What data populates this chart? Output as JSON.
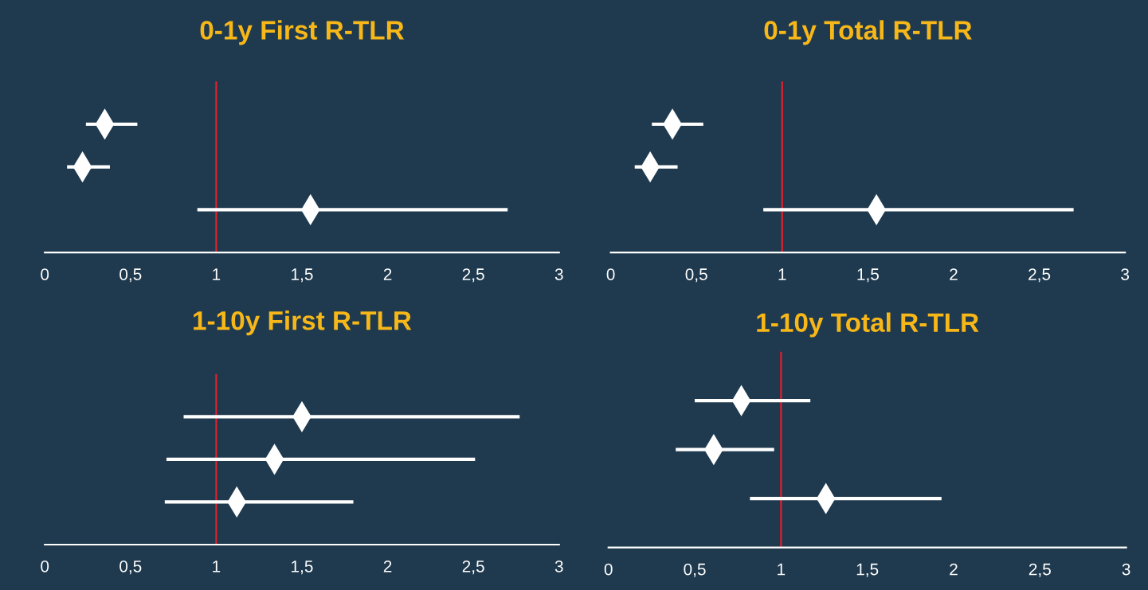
{
  "chart_data": [
    {
      "type": "scatter",
      "title": "0-1y First R-TLR",
      "categories": [
        null,
        null,
        null
      ],
      "orientation": "horizontal",
      "marker": "diamond",
      "tick_labels": "x",
      "grid": false,
      "legend": false,
      "color": "#ffffff",
      "values": [
        0.35,
        0.22,
        1.55
      ],
      "errors": [
        [
          0.24,
          0.54
        ],
        [
          0.13,
          0.38
        ],
        [
          0.89,
          2.7
        ]
      ],
      "xlim": [
        0,
        3
      ],
      "xticks": [
        0,
        {
          "value": 0.5,
          "label": "0,5"
        },
        1,
        {
          "value": 1.5,
          "label": "1,5"
        },
        2,
        {
          "value": 2.5,
          "label": "2,5"
        },
        3
      ],
      "ref_lines": [
        {
          "axis": "x",
          "value": 1,
          "color": "#e8202a"
        }
      ]
    },
    {
      "type": "scatter",
      "title": "0-1y Total R-TLR",
      "categories": [
        null,
        null,
        null
      ],
      "orientation": "horizontal",
      "marker": "diamond",
      "tick_labels": "x",
      "grid": false,
      "legend": false,
      "color": "#ffffff",
      "values": [
        0.36,
        0.23,
        1.55
      ],
      "errors": [
        [
          0.24,
          0.54
        ],
        [
          0.14,
          0.39
        ],
        [
          0.89,
          2.7
        ]
      ],
      "xlim": [
        0,
        3
      ],
      "xticks": [
        0,
        {
          "value": 0.5,
          "label": "0,5"
        },
        1,
        {
          "value": 1.5,
          "label": "1,5"
        },
        2,
        {
          "value": 2.5,
          "label": "2,5"
        },
        3
      ],
      "ref_lines": [
        {
          "axis": "x",
          "value": 1,
          "color": "#e8202a"
        }
      ]
    },
    {
      "type": "scatter",
      "title": "1-10y First R-TLR",
      "categories": [
        null,
        null,
        null
      ],
      "orientation": "horizontal",
      "marker": "diamond",
      "tick_labels": "x",
      "grid": false,
      "legend": false,
      "color": "#ffffff",
      "values": [
        1.5,
        1.34,
        1.12
      ],
      "errors": [
        [
          0.81,
          2.77
        ],
        [
          0.71,
          2.51
        ],
        [
          0.7,
          1.8
        ]
      ],
      "xlim": [
        0,
        3
      ],
      "xticks": [
        0,
        {
          "value": 0.5,
          "label": "0,5"
        },
        1,
        {
          "value": 1.5,
          "label": "1,5"
        },
        2,
        {
          "value": 2.5,
          "label": "2,5"
        },
        3
      ],
      "ref_lines": [
        {
          "axis": "x",
          "value": 1,
          "color": "#e8202a"
        }
      ]
    },
    {
      "type": "scatter",
      "title": "1-10y Total R-TLR",
      "categories": [
        null,
        null,
        null
      ],
      "orientation": "horizontal",
      "marker": "diamond",
      "tick_labels": "x",
      "grid": false,
      "legend": false,
      "color": "#ffffff",
      "values": [
        0.77,
        0.61,
        1.26
      ],
      "errors": [
        [
          0.5,
          1.17
        ],
        [
          0.39,
          0.96
        ],
        [
          0.82,
          1.93
        ]
      ],
      "xlim": [
        0,
        3
      ],
      "xticks": [
        0,
        {
          "value": 0.5,
          "label": "0,5"
        },
        1,
        {
          "value": 1.5,
          "label": "1,5"
        },
        2,
        {
          "value": 2.5,
          "label": "2,5"
        },
        3
      ],
      "ref_lines": [
        {
          "axis": "x",
          "value": 1,
          "color": "#e8202a"
        }
      ]
    }
  ]
}
